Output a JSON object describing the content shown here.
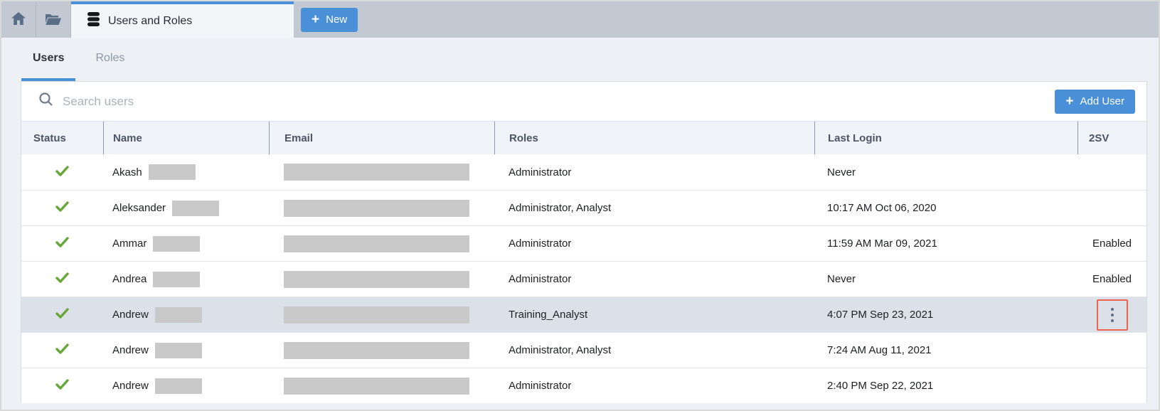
{
  "colors": {
    "accent_blue": "#4a90d9",
    "status_green": "#67a637",
    "annotation_red": "#ec6450",
    "topbar_gray": "#c3c9d2",
    "highlight_row": "#dce1e9"
  },
  "tab_bar": {
    "active_tab": {
      "icon": "database-icon",
      "label": "Users and Roles"
    },
    "new_button": {
      "icon": "plus-icon",
      "plus_glyph": "+",
      "label": "New"
    }
  },
  "subtabs": [
    {
      "label": "Users",
      "active": true
    },
    {
      "label": "Roles",
      "active": false
    }
  ],
  "toolbar": {
    "search_placeholder": "Search users",
    "add_user_button": {
      "icon": "plus-icon",
      "plus_glyph": "+",
      "label": "Add User"
    }
  },
  "table": {
    "columns": [
      "Status",
      "Name",
      "Email",
      "Roles",
      "Last Login",
      "2SV"
    ],
    "rows": [
      {
        "status": "active",
        "name": "Akash",
        "name_redacted": true,
        "email_redacted": true,
        "roles": "Administrator",
        "last_login": "Never",
        "twosv": "",
        "highlighted": false,
        "has_menu": false
      },
      {
        "status": "active",
        "name": "Aleksander",
        "name_redacted": true,
        "email_redacted": true,
        "roles": "Administrator, Analyst",
        "last_login": "10:17 AM Oct 06, 2020",
        "twosv": "",
        "highlighted": false,
        "has_menu": false
      },
      {
        "status": "active",
        "name": "Ammar",
        "name_redacted": true,
        "email_redacted": true,
        "roles": "Administrator",
        "last_login": "11:59 AM Mar 09, 2021",
        "twosv": "Enabled",
        "highlighted": false,
        "has_menu": false
      },
      {
        "status": "active",
        "name": "Andrea",
        "name_redacted": true,
        "email_redacted": true,
        "roles": "Administrator",
        "last_login": "Never",
        "twosv": "Enabled",
        "highlighted": false,
        "has_menu": false
      },
      {
        "status": "active",
        "name": "Andrew",
        "name_redacted": true,
        "email_redacted": true,
        "roles": "Training_Analyst",
        "last_login": "4:07 PM Sep 23, 2021",
        "twosv": "",
        "highlighted": true,
        "has_menu": true
      },
      {
        "status": "active",
        "name": "Andrew",
        "name_redacted": true,
        "email_redacted": true,
        "roles": "Administrator, Analyst",
        "last_login": "7:24 AM Aug 11, 2021",
        "twosv": "",
        "highlighted": false,
        "has_menu": false
      },
      {
        "status": "active",
        "name": "Andrew",
        "name_redacted": true,
        "email_redacted": true,
        "roles": "Administrator",
        "last_login": "2:40 PM Sep 22, 2021",
        "twosv": "",
        "highlighted": false,
        "has_menu": false
      }
    ]
  }
}
